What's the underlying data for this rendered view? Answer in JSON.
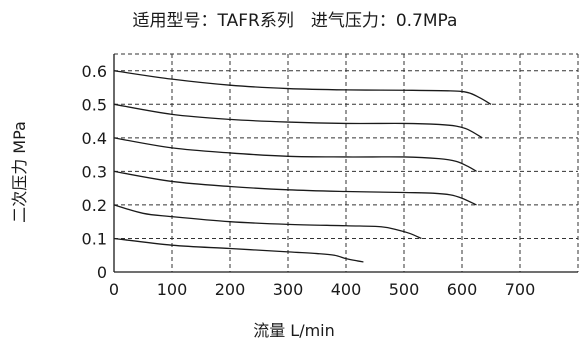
{
  "chart_data": {
    "type": "line",
    "title": "适用型号：TAFR系列　进气压力：0.7MPa",
    "xlabel": "流量  L/min",
    "ylabel": "二次压力  MPa",
    "x_ticks": [
      "0",
      "100",
      "200",
      "300",
      "400",
      "500",
      "600",
      "700"
    ],
    "y_ticks": [
      "0",
      "0.1",
      "0.2",
      "0.3",
      "0.4",
      "0.5",
      "0.6"
    ],
    "xlim": [
      0,
      800
    ],
    "ylim": [
      0,
      0.65
    ],
    "grid": true,
    "grid_style": "dashed",
    "series": [
      {
        "x": [
          0,
          100,
          200,
          300,
          350,
          380,
          400,
          420,
          430
        ],
        "y": [
          0.1,
          0.08,
          0.07,
          0.06,
          0.055,
          0.05,
          0.04,
          0.033,
          0.03
        ]
      },
      {
        "x": [
          0,
          50,
          100,
          200,
          300,
          400,
          460,
          490,
          510,
          530
        ],
        "y": [
          0.2,
          0.175,
          0.165,
          0.15,
          0.142,
          0.138,
          0.135,
          0.125,
          0.115,
          0.1
        ]
      },
      {
        "x": [
          0,
          100,
          200,
          300,
          400,
          500,
          550,
          580,
          600,
          625
        ],
        "y": [
          0.3,
          0.27,
          0.255,
          0.245,
          0.24,
          0.237,
          0.235,
          0.23,
          0.22,
          0.2
        ]
      },
      {
        "x": [
          0,
          100,
          200,
          300,
          400,
          500,
          560,
          590,
          610,
          625
        ],
        "y": [
          0.4,
          0.37,
          0.355,
          0.345,
          0.343,
          0.343,
          0.338,
          0.33,
          0.315,
          0.3
        ]
      },
      {
        "x": [
          0,
          100,
          200,
          300,
          400,
          500,
          560,
          590,
          610,
          635
        ],
        "y": [
          0.5,
          0.47,
          0.455,
          0.447,
          0.443,
          0.443,
          0.44,
          0.435,
          0.425,
          0.4
        ]
      },
      {
        "x": [
          0,
          100,
          200,
          300,
          400,
          500,
          580,
          610,
          630,
          650
        ],
        "y": [
          0.6,
          0.575,
          0.557,
          0.547,
          0.543,
          0.542,
          0.54,
          0.535,
          0.52,
          0.5
        ]
      }
    ]
  }
}
